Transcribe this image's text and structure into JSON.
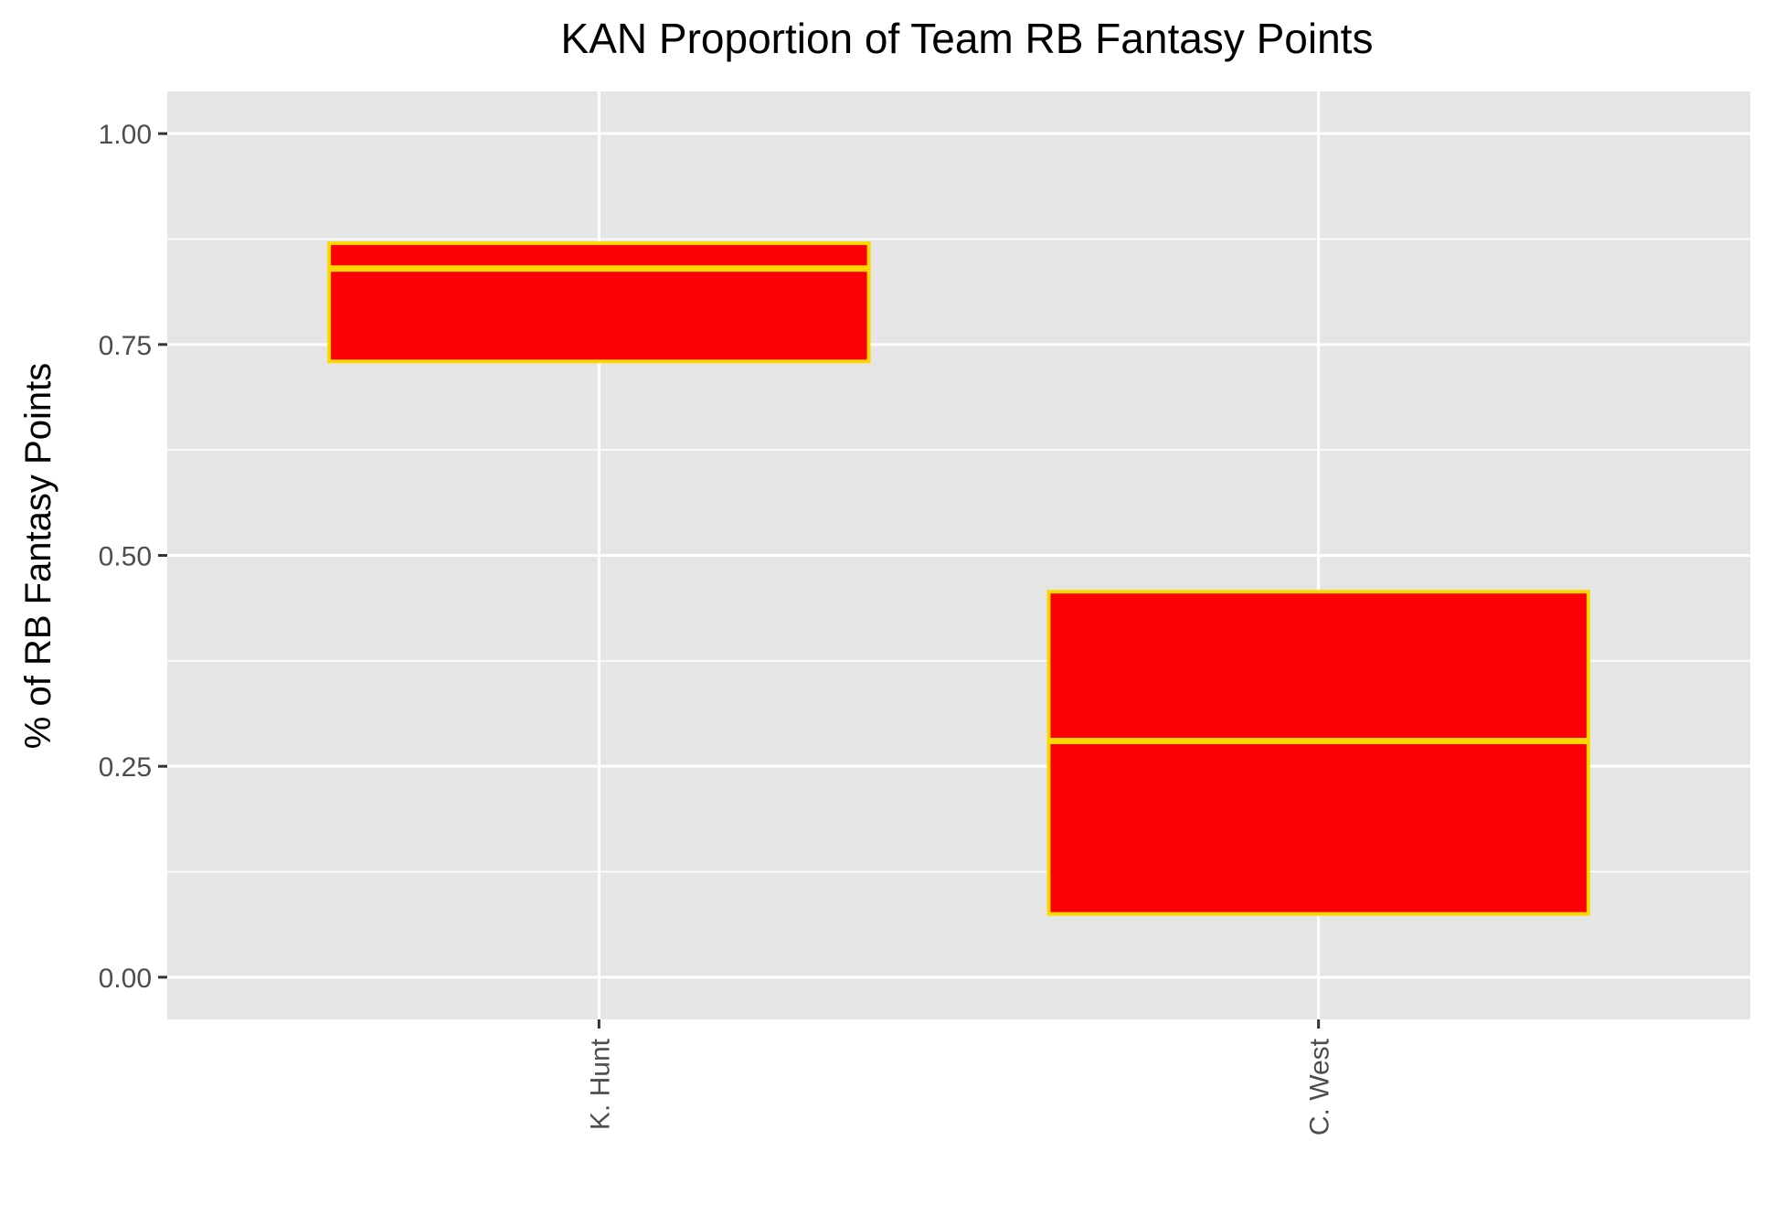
{
  "chart_data": {
    "type": "boxplot",
    "title": "KAN Proportion of Team RB Fantasy Points",
    "xlabel": "",
    "ylabel": "% of RB Fantasy Points",
    "categories": [
      "K. Hunt",
      "C. West"
    ],
    "boxes": [
      {
        "category": "K. Hunt",
        "q1": 0.73,
        "median": 0.84,
        "q3": 0.87
      },
      {
        "category": "C. West",
        "q1": 0.075,
        "median": 0.28,
        "q3": 0.457
      }
    ],
    "ylim": [
      -0.05,
      1.05
    ],
    "yticks": [
      0.0,
      0.25,
      0.5,
      0.75,
      1.0
    ],
    "ytick_labels": [
      "0.00",
      "0.25",
      "0.50",
      "0.75",
      "1.00"
    ],
    "grid": true,
    "colors": {
      "panel_background": "#e5e5e5",
      "grid": "#ffffff",
      "box_fill": "#fc0007",
      "box_outline": "#ffd700",
      "text": "#000000",
      "tick_text": "#4d4d4d",
      "tick_mark": "#333333"
    }
  }
}
